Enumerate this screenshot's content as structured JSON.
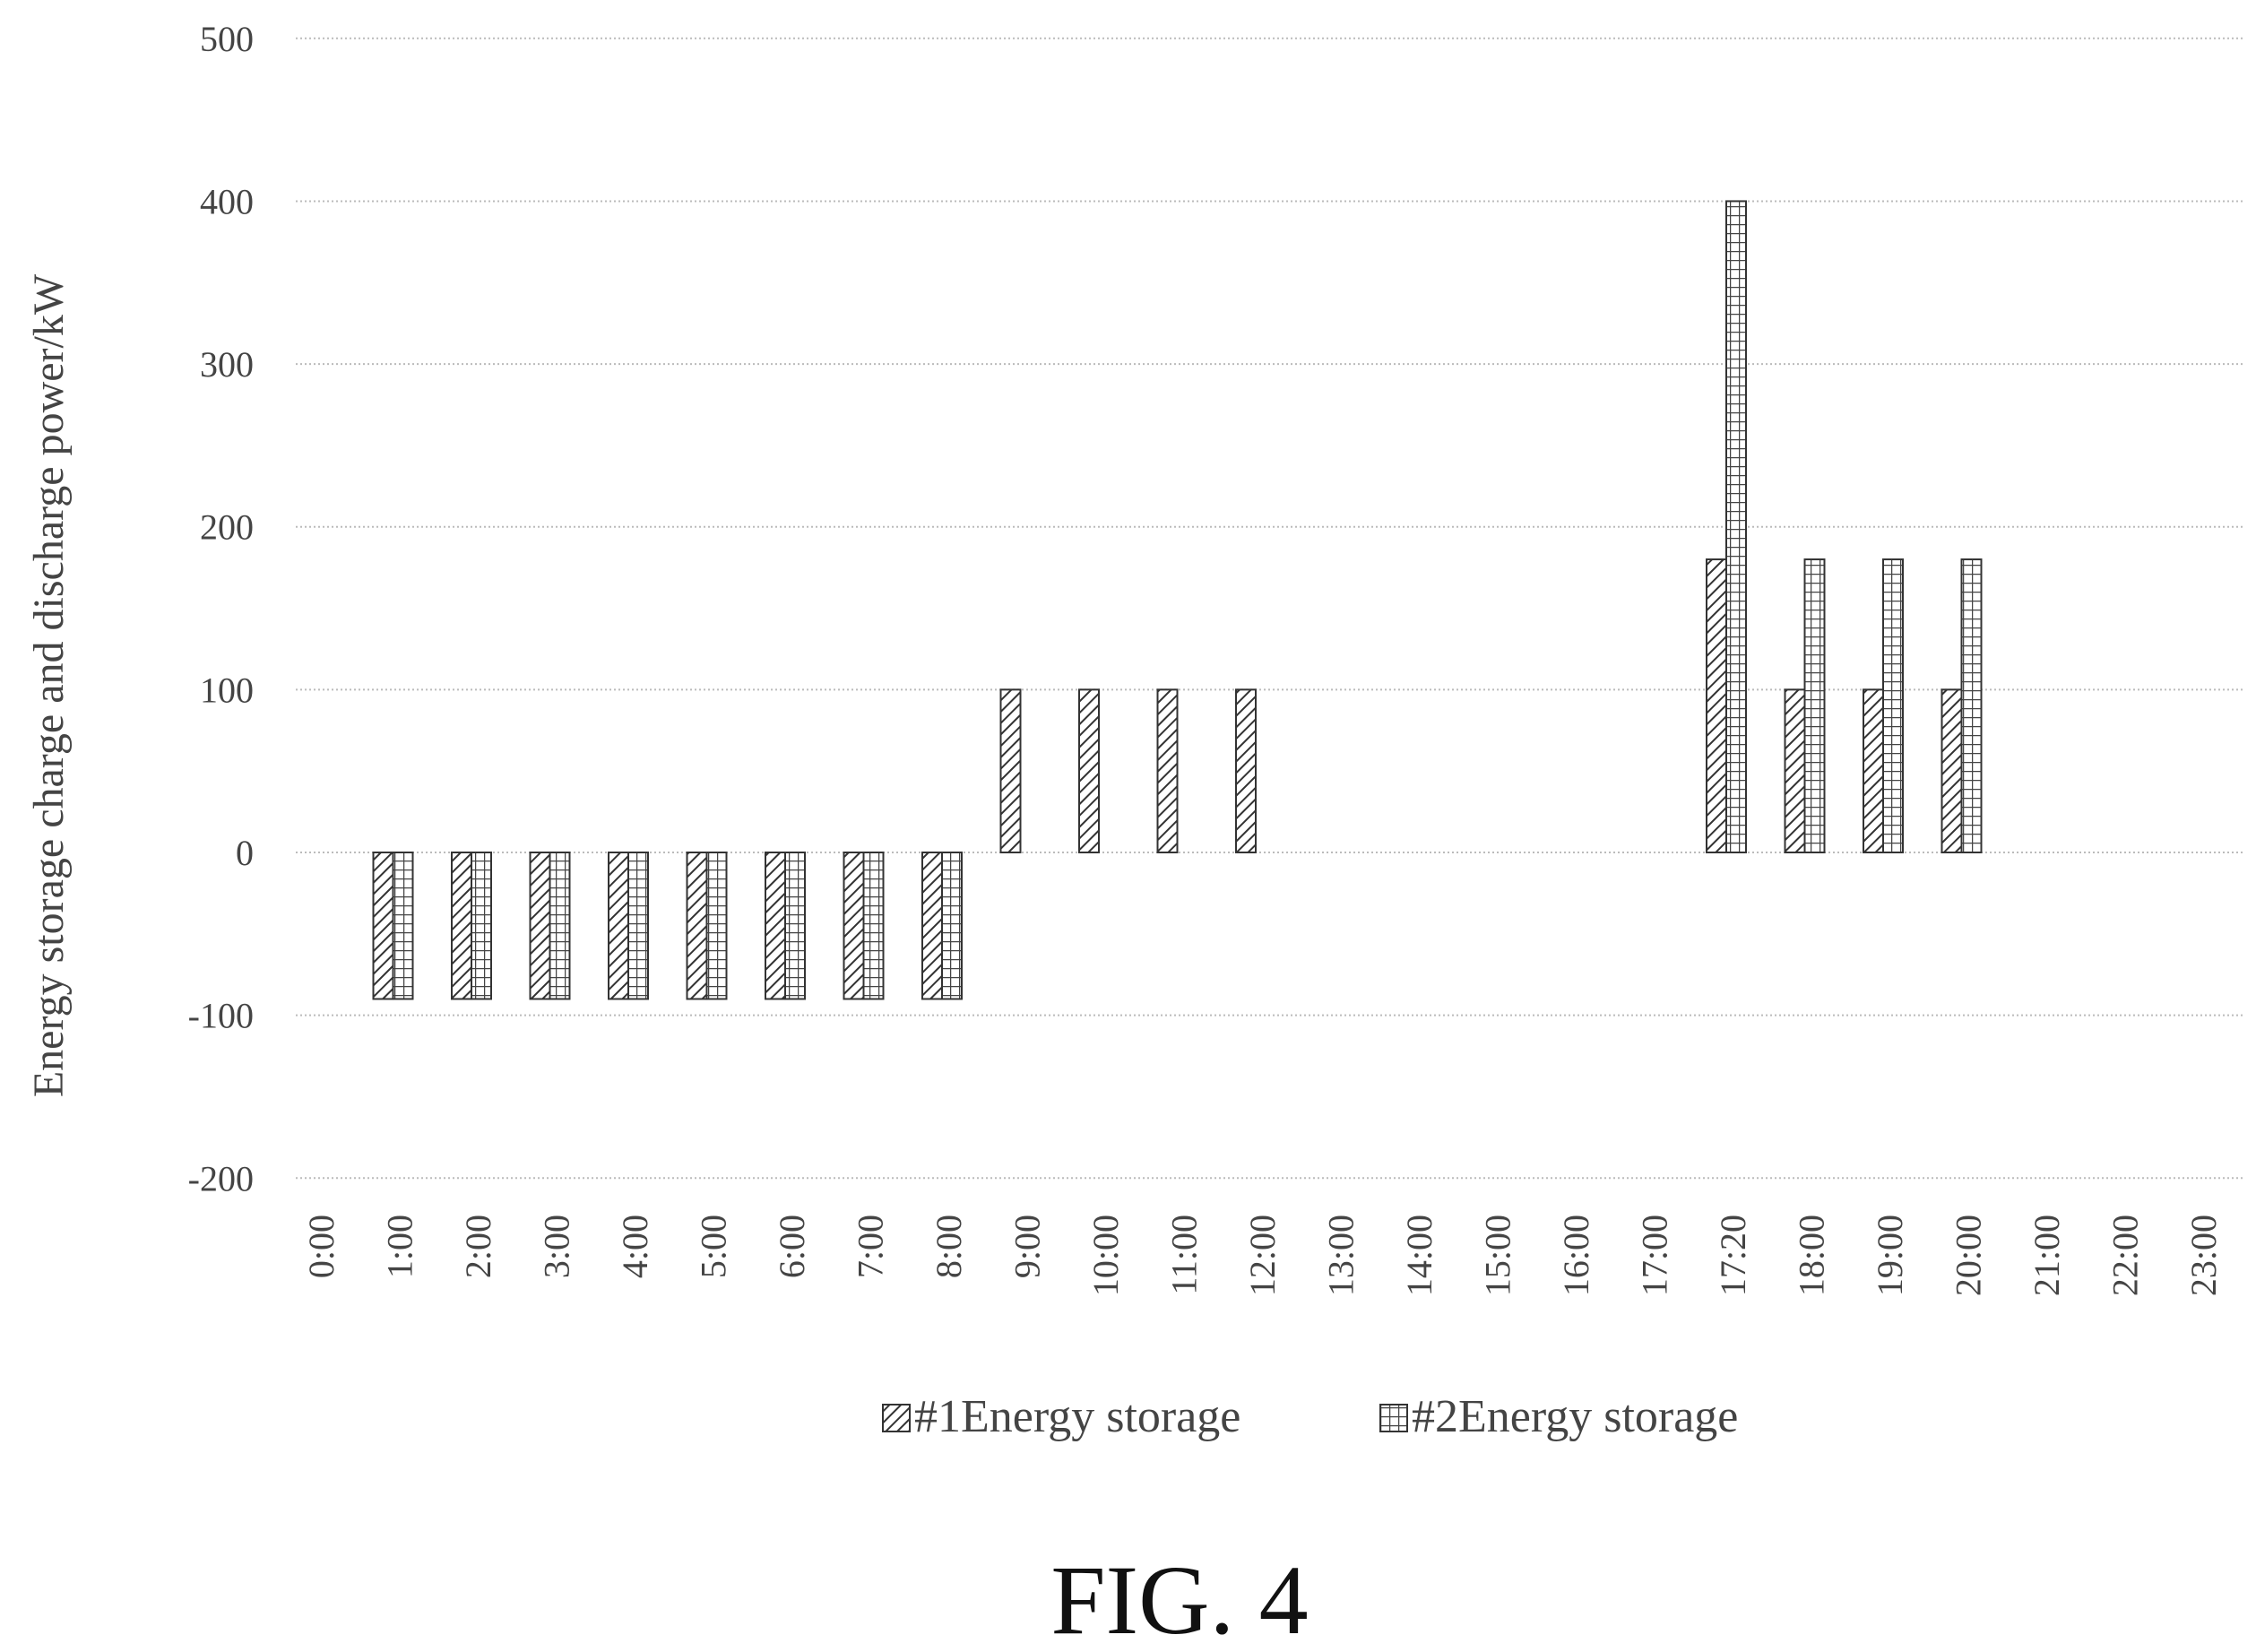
{
  "chart_data": {
    "type": "bar",
    "title": "",
    "xlabel": "",
    "ylabel": "Energy storage charge and discharge power/kW",
    "ylim": [
      -200,
      500
    ],
    "yticks": [
      500,
      400,
      300,
      200,
      100,
      0,
      -100,
      -200
    ],
    "grid": true,
    "legend_position": "bottom",
    "categories": [
      "0:00",
      "1:00",
      "2:00",
      "3:00",
      "4:00",
      "5:00",
      "6:00",
      "7:00",
      "8:00",
      "9:00",
      "10:00",
      "11:00",
      "12:00",
      "13:00",
      "14:00",
      "15:00",
      "16:00",
      "17:00",
      "17:20",
      "18:00",
      "19:00",
      "20:00",
      "21:00",
      "22:00",
      "23:00"
    ],
    "series": [
      {
        "name": "#1Energy storage",
        "pattern": "diagonal-hatch",
        "values": [
          0,
          -90,
          -90,
          -90,
          -90,
          -90,
          -90,
          -90,
          -90,
          100,
          100,
          100,
          100,
          0,
          0,
          0,
          0,
          0,
          180,
          100,
          100,
          100,
          0,
          0,
          0
        ]
      },
      {
        "name": "#2Energy storage",
        "pattern": "grid-hatch",
        "values": [
          0,
          -90,
          -90,
          -90,
          -90,
          -90,
          -90,
          -90,
          -90,
          0,
          0,
          0,
          0,
          0,
          0,
          0,
          0,
          0,
          400,
          180,
          180,
          180,
          0,
          0,
          0
        ]
      }
    ]
  },
  "caption": "FIG. 4",
  "colors": {
    "bar_stroke": "#333333",
    "grid": "#bbbbbb",
    "text": "#444444"
  }
}
